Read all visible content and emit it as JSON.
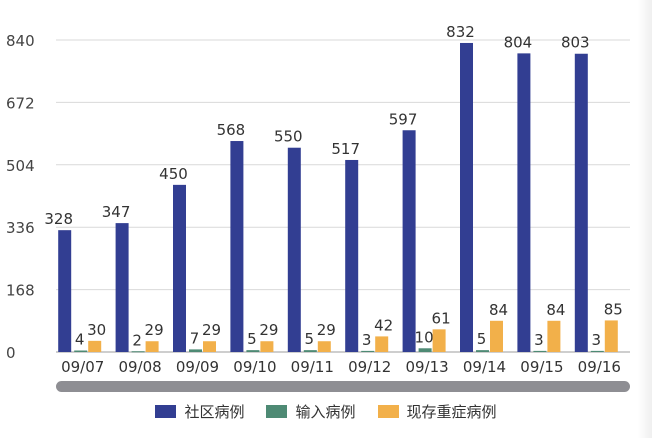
{
  "chart_data": {
    "type": "bar",
    "categories": [
      "09/07",
      "09/08",
      "09/09",
      "09/10",
      "09/11",
      "09/12",
      "09/13",
      "09/14",
      "09/15",
      "09/16"
    ],
    "series": [
      {
        "name": "社区病例",
        "color": "#323e92",
        "values": [
          328,
          347,
          450,
          568,
          550,
          517,
          597,
          832,
          804,
          803
        ]
      },
      {
        "name": "输入病例",
        "color": "#4e8a74",
        "values": [
          4,
          2,
          7,
          5,
          5,
          3,
          10,
          5,
          3,
          3
        ]
      },
      {
        "name": "现存重症病例",
        "color": "#f2b04a",
        "values": [
          30,
          29,
          29,
          29,
          29,
          42,
          61,
          84,
          84,
          85
        ]
      }
    ],
    "yticks": [
      0,
      168,
      336,
      504,
      672,
      840
    ],
    "ylim": [
      0,
      840
    ],
    "grid": true,
    "legend_position": "bottom"
  }
}
